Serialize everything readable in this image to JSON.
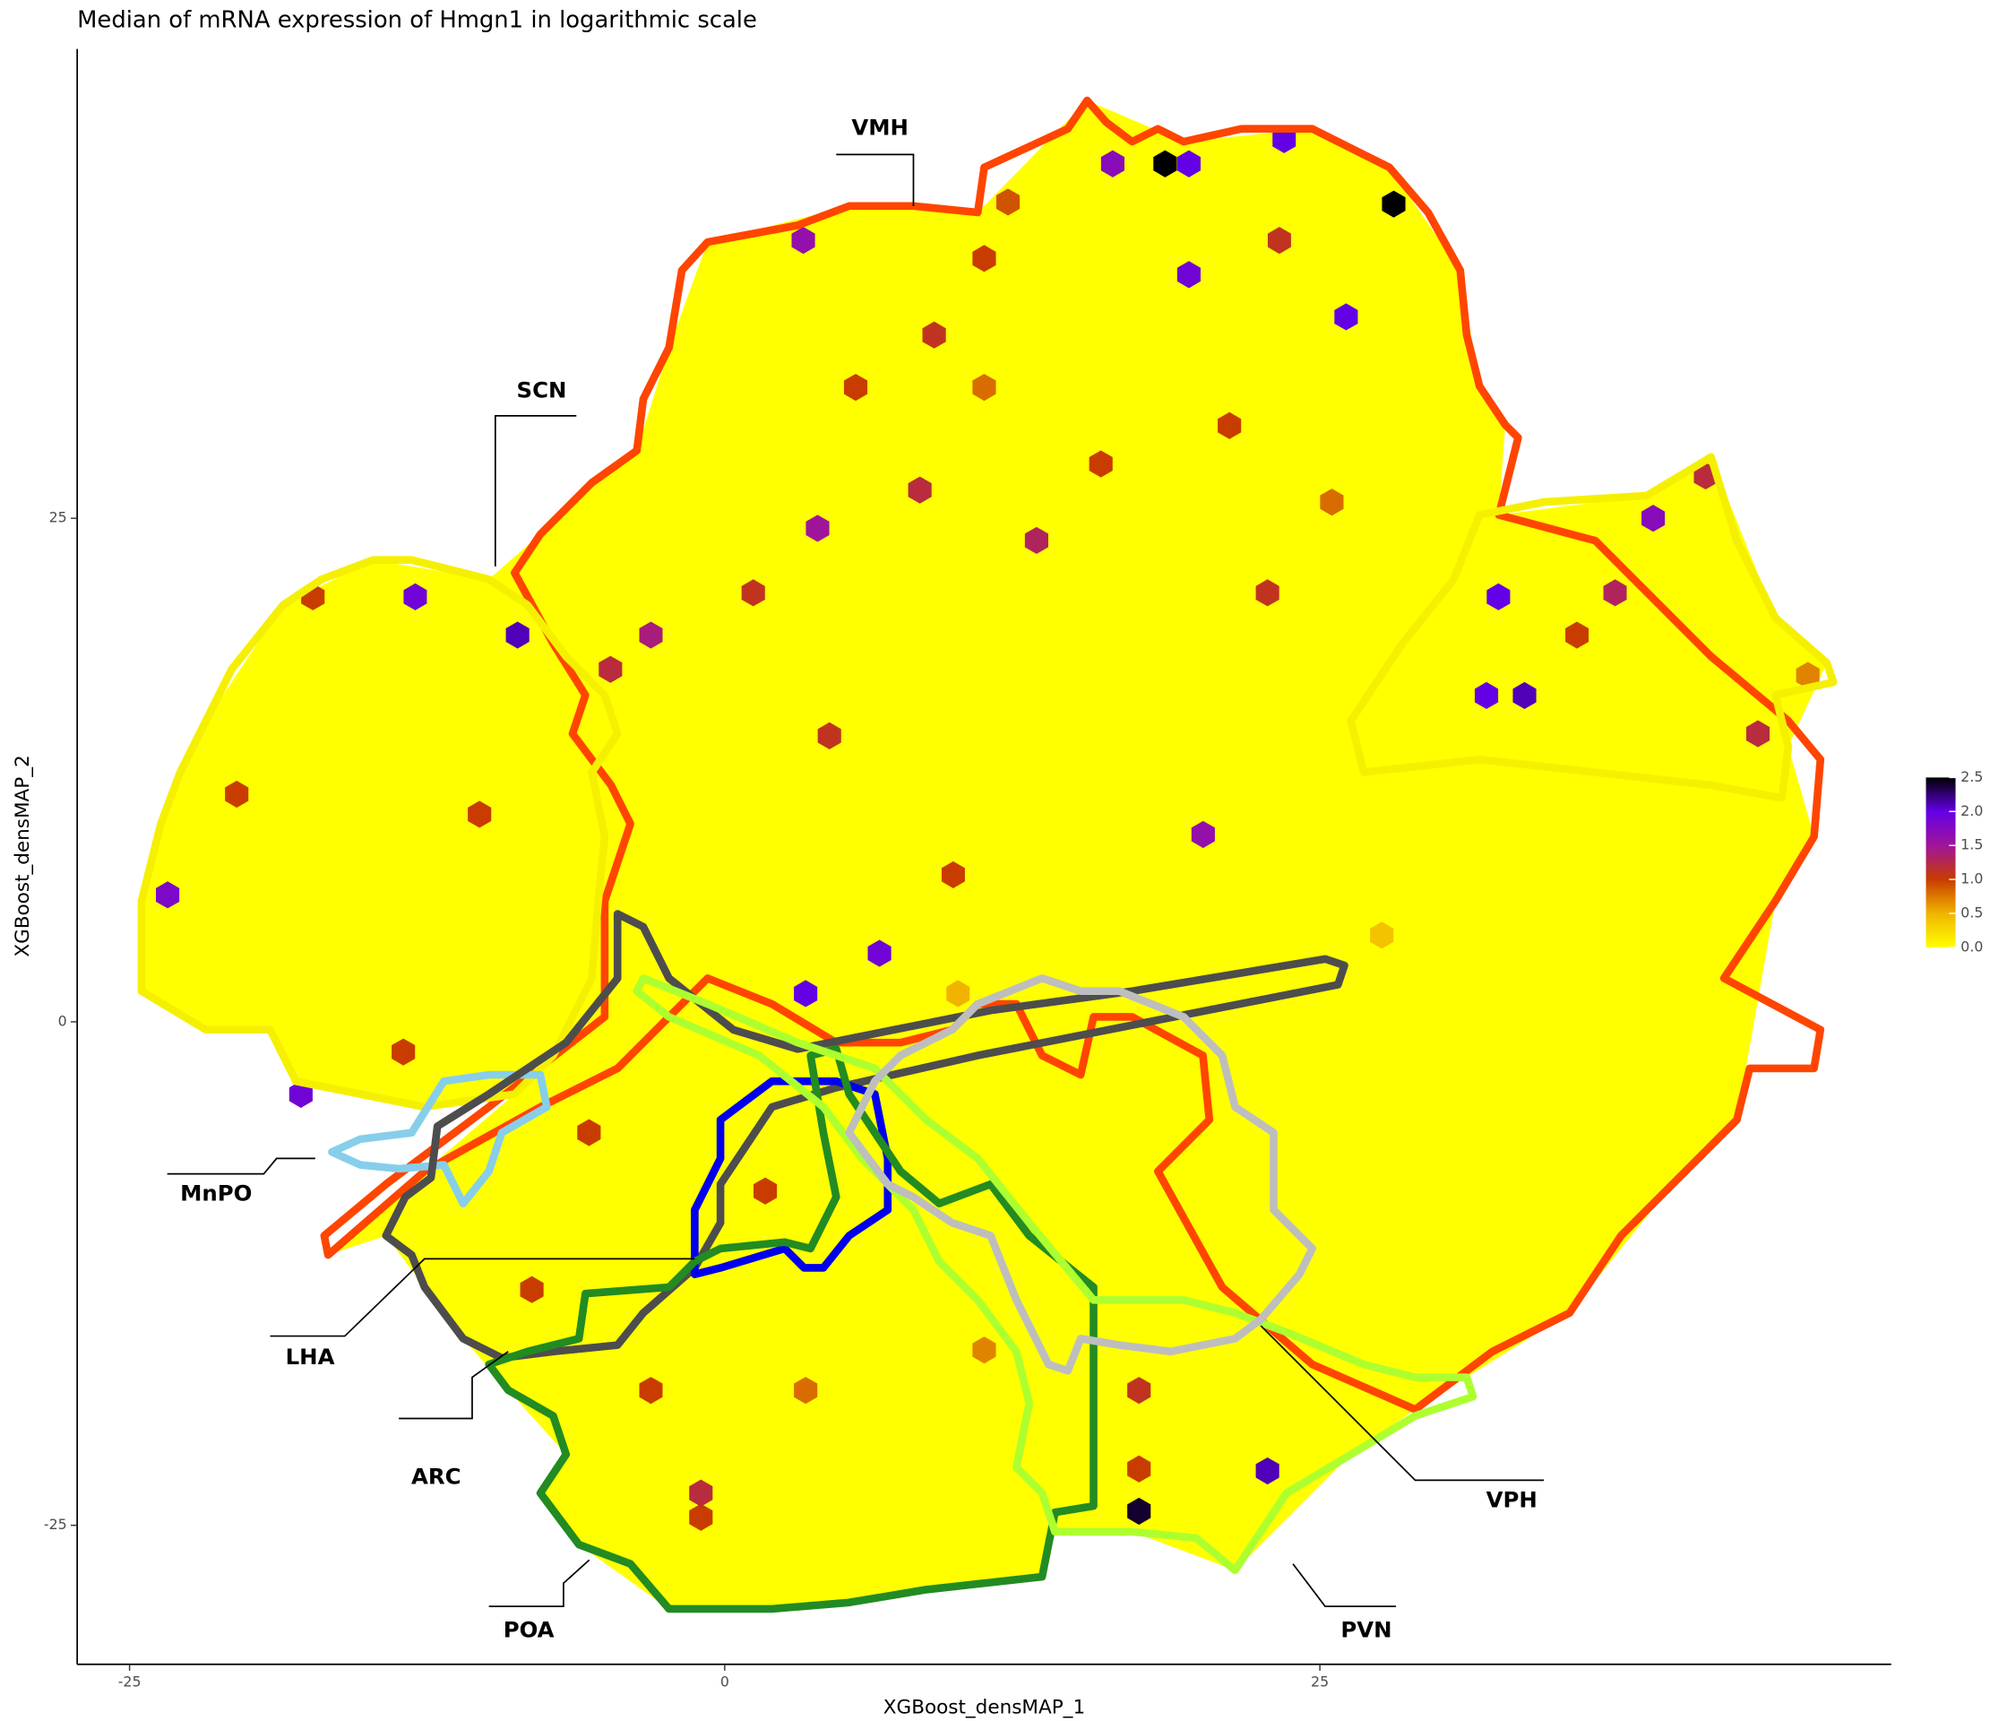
{
  "chart_data": {
    "type": "hexbin",
    "title": "Median of mRNA expression of Hmgn1 in logarithmic scale",
    "xlabel": "XGBoost_densMAP_1",
    "ylabel": "XGBoost_densMAP_2",
    "xlim": [
      -27.2,
      49.0
    ],
    "ylim": [
      -31.9,
      48.3
    ],
    "xticks": [
      -25,
      0,
      25
    ],
    "yticks": [
      -25,
      0,
      25
    ],
    "colorbar": {
      "lim": [
        0,
        2.5
      ],
      "ticks": [
        {
          "value": 0,
          "label": "0.0"
        },
        0.5,
        {
          "value": 1,
          "label": "1.0"
        },
        1.5,
        {
          "value": 2,
          "label": "2.0"
        },
        2.5
      ]
    },
    "hexes": {
      "x": [
        18.5,
        28.1,
        17.4,
        23.5,
        19.5,
        16.3,
        26.1,
        19.5,
        3.3,
        39.0,
        32.5,
        32.0,
        33.6,
        -13.0,
        -8.7,
        -23.4,
        -17.8,
        22.8,
        3.4,
        6.5,
        20.1,
        -17.3,
        -20.5,
        -10.3,
        -13.5,
        -5.7,
        -8.1,
        -1.0,
        10.9,
        17.4,
        17.4,
        10.9,
        11.9,
        41.2,
        43.4,
        27.6,
        9.8,
        23.3,
        45.5,
        9.6,
        4.4,
        1.7,
        3.4,
        -3.1,
        -1.0,
        8.2,
        13.1,
        15.8,
        22.8,
        25.5,
        21.2,
        3.9,
        1.2,
        -3.1,
        -4.8,
        5.5,
        8.8,
        10.9,
        37.4,
        35.8
      ],
      "y": [
        42.6,
        40.6,
        -24.3,
        43.8,
        42.6,
        42.6,
        35.0,
        37.1,
        38.8,
        25.0,
        21.1,
        16.2,
        16.2,
        21.1,
        19.2,
        6.3,
        -3.6,
        -22.3,
        1.4,
        3.4,
        9.3,
        21.1,
        11.3,
        10.3,
        -1.5,
        -5.5,
        -13.3,
        -24.6,
        -16.3,
        -18.3,
        -22.2,
        37.9,
        40.7,
        27.1,
        14.3,
        4.3,
        1.4,
        38.8,
        17.2,
        7.3,
        14.2,
        -8.4,
        -18.3,
        -18.3,
        -23.4,
        26.4,
        23.9,
        27.7,
        21.3,
        25.8,
        29.6,
        24.5,
        21.3,
        19.2,
        17.5,
        31.5,
        34.1,
        31.5,
        21.3,
        19.2
      ],
      "values": [
        2.5,
        2.5,
        2.4,
        2.0,
        2.0,
        1.7,
        2.0,
        1.9,
        1.6,
        1.7,
        2.0,
        2.0,
        2.1,
        1.9,
        2.1,
        1.8,
        1.9,
        2.1,
        2.0,
        1.9,
        1.6,
        1.0,
        1.0,
        1.0,
        1.0,
        1.0,
        1.0,
        1.0,
        0.7,
        1.1,
        1.0,
        1.0,
        0.9,
        1.2,
        1.2,
        0.4,
        0.5,
        1.1,
        0.7,
        1.0,
        1.1,
        1.0,
        0.8,
        1.0,
        1.2,
        1.2,
        1.3,
        1.0,
        1.1,
        0.8,
        1.0,
        1.5,
        1.1,
        1.4,
        1.2,
        1.0,
        1.1,
        0.8,
        1.3,
        1.0
      ]
    },
    "regions": [
      {
        "name": "VMH",
        "color": "#ff4500"
      },
      {
        "name": "SCN",
        "color": "#f5f000"
      },
      {
        "name": "MnPO",
        "color": "#87ceeb"
      },
      {
        "name": "LHA",
        "color": "#4d4d4d"
      },
      {
        "name": "ARC",
        "color": "#0000ee"
      },
      {
        "name": "POA",
        "color": "#228b22"
      },
      {
        "name": "PVN",
        "color": "#adff2f"
      },
      {
        "name": "VPH",
        "color": "#bebebe"
      }
    ]
  }
}
